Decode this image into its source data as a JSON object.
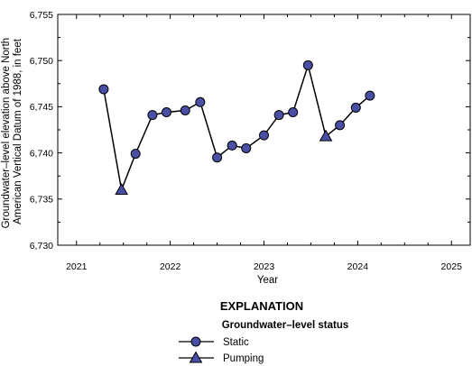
{
  "chart_data": {
    "type": "line",
    "title": "",
    "xlabel": "Year",
    "ylabel_lines": [
      "Groundwater–level elevation above North",
      "American Vertical Datum of 1988, in feet"
    ],
    "xlim": [
      2020.8,
      2025.2
    ],
    "ylim": [
      6730,
      6755
    ],
    "x_ticks": [
      2021,
      2022,
      2023,
      2024,
      2025
    ],
    "x_tick_labels": [
      "2021",
      "2022",
      "2023",
      "2024",
      "2025"
    ],
    "y_ticks": [
      6730,
      6735,
      6740,
      6745,
      6750,
      6755
    ],
    "y_tick_labels": [
      "6,730",
      "6,735",
      "6,740",
      "6,745",
      "6,750",
      "6,755"
    ],
    "grid": false,
    "series": [
      {
        "x": [
          2021.29,
          2021.48,
          2021.63,
          2021.81,
          2021.96,
          2022.16,
          2022.32,
          2022.5,
          2022.66,
          2022.81,
          2023.0,
          2023.16,
          2023.31,
          2023.47,
          2023.66,
          2023.81,
          2023.98,
          2024.13
        ],
        "y": [
          6746.9,
          6736.0,
          6739.9,
          6744.1,
          6744.4,
          6744.6,
          6745.5,
          6739.5,
          6740.8,
          6740.5,
          6741.9,
          6744.1,
          6744.4,
          6749.5,
          6741.8,
          6743.0,
          6744.9,
          6746.2
        ],
        "status": [
          "Static",
          "Pumping",
          "Static",
          "Static",
          "Static",
          "Static",
          "Static",
          "Static",
          "Static",
          "Static",
          "Static",
          "Static",
          "Static",
          "Static",
          "Pumping",
          "Static",
          "Static",
          "Static"
        ]
      }
    ],
    "legend": {
      "title": "EXPLANATION",
      "subtitle": "Groundwater–level status",
      "placement": "bottom-center",
      "entries": [
        {
          "label": "Static",
          "marker": "circle"
        },
        {
          "label": "Pumping",
          "marker": "triangle"
        }
      ]
    }
  },
  "colors": {
    "marker_fill": "#4a4fa6",
    "line": "#000000"
  }
}
